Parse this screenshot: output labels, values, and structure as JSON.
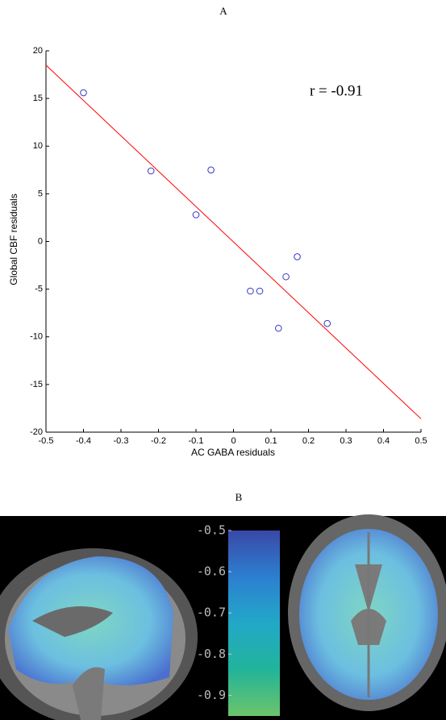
{
  "chart_data": [
    {
      "type": "scatter",
      "title": "A",
      "x_label": "AC GABA residuals",
      "y_label": "Global CBF residuals",
      "annotation": "r = -0.91",
      "x": [
        -0.4,
        -0.22,
        -0.06,
        -0.1,
        0.045,
        0.07,
        0.12,
        0.14,
        0.17,
        0.25
      ],
      "y": [
        15.6,
        7.4,
        7.5,
        2.8,
        -5.2,
        -5.2,
        -9.1,
        -3.7,
        -1.6,
        -8.6
      ],
      "color": "#3535c8",
      "trend_line": {
        "x": [
          -0.5,
          0.5
        ],
        "y": [
          18.5,
          -18.6
        ],
        "color": "#ff0000"
      },
      "xlim": [
        -0.5,
        0.5
      ],
      "xticks": [
        -0.5,
        -0.4,
        -0.3,
        -0.2,
        -0.1,
        0,
        0.1,
        0.2,
        0.3,
        0.4,
        0.5
      ],
      "ylim": [
        -20,
        20
      ],
      "yticks": [
        -20,
        -15,
        -10,
        -5,
        0,
        5,
        10,
        15,
        20
      ]
    },
    {
      "type": "colorbar",
      "title": "B",
      "ylim": [
        -0.95,
        -0.5
      ],
      "yticks": [
        -0.5,
        -0.6,
        -0.7,
        -0.8,
        -0.9
      ],
      "colors": [
        "#3a48a8",
        "#2c7fd0",
        "#22a8c8",
        "#22b49a",
        "#6cc46a"
      ]
    }
  ]
}
